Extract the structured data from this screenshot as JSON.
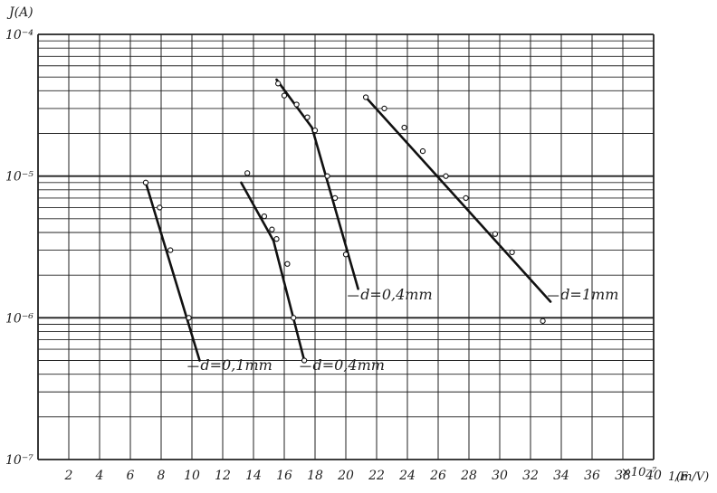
{
  "chart_data": {
    "type": "line",
    "y_axis_label": "J(A)",
    "y_scale": "log",
    "ylim": [
      1e-07,
      0.0001
    ],
    "y_tick_labels": [
      "10⁻⁴",
      "10⁻⁵",
      "10⁻⁶",
      "10⁻⁷"
    ],
    "x_axis_label_prefix": "×10⁻⁷",
    "x_axis_label_fraction": "1/E",
    "x_axis_unit": "(m/V)",
    "xlim": [
      0,
      40
    ],
    "x_tick_labels": [
      "2",
      "4",
      "6",
      "8",
      "10",
      "12",
      "14",
      "16",
      "18",
      "20",
      "22",
      "24",
      "26",
      "28",
      "30",
      "32",
      "34",
      "36",
      "38",
      "40"
    ],
    "grid": true,
    "series": [
      {
        "label": "d=0,1mm",
        "line": [
          [
            7.0,
            9e-06
          ],
          [
            10.5,
            5e-07
          ]
        ],
        "points": [
          [
            7.0,
            9e-06
          ],
          [
            7.9,
            6e-06
          ],
          [
            8.6,
            3e-06
          ],
          [
            9.8,
            1e-06
          ]
        ]
      },
      {
        "label": "d=0,4mm",
        "line": [
          [
            13.2,
            9e-06
          ],
          [
            15.3,
            3.5e-06
          ],
          [
            17.3,
            5e-07
          ]
        ],
        "points": [
          [
            13.6,
            1.05e-05
          ],
          [
            14.7,
            5.2e-06
          ],
          [
            15.2,
            4.2e-06
          ],
          [
            15.5,
            3.6e-06
          ],
          [
            16.2,
            2.4e-06
          ],
          [
            16.6,
            1e-06
          ],
          [
            17.3,
            5e-07
          ]
        ]
      },
      {
        "label": "d=0,4mm",
        "line": [
          [
            15.5,
            4.8e-05
          ],
          [
            17.8,
            2.2e-05
          ],
          [
            20.8,
            1.6e-06
          ]
        ],
        "points": [
          [
            15.6,
            4.5e-05
          ],
          [
            16.0,
            3.7e-05
          ],
          [
            16.8,
            3.2e-05
          ],
          [
            17.5,
            2.6e-05
          ],
          [
            18.0,
            2.1e-05
          ],
          [
            18.8,
            1e-05
          ],
          [
            19.3,
            7e-06
          ],
          [
            20.0,
            2.8e-06
          ]
        ]
      },
      {
        "label": "d=1mm",
        "line": [
          [
            21.3,
            3.6e-05
          ],
          [
            33.3,
            1.3e-06
          ]
        ],
        "points": [
          [
            21.3,
            3.6e-05
          ],
          [
            22.5,
            3e-05
          ],
          [
            23.8,
            2.2e-05
          ],
          [
            25.0,
            1.5e-05
          ],
          [
            26.5,
            1e-05
          ],
          [
            27.8,
            7e-06
          ],
          [
            29.7,
            3.9e-06
          ],
          [
            30.8,
            2.9e-06
          ],
          [
            32.8,
            9.5e-07
          ]
        ]
      }
    ]
  }
}
